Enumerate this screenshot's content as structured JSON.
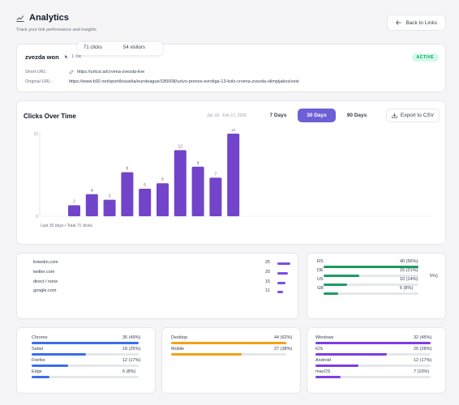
{
  "header": {
    "title": "Analytics",
    "subtitle": "Track your link performance and insights",
    "back_label": "Back to Links"
  },
  "tooltip": {
    "clicks": "71 clicks",
    "visitors": "54 visitors"
  },
  "link": {
    "name": "zvezda won",
    "meta_clicks": "1 clic",
    "status": "ACTIVE",
    "short_label": "Short URL:",
    "short_url": "https://urlcut.ai/crvena-zvezda-live",
    "original_label": "Original URL:",
    "original_url": "https://www.b92.net/sport/kosarka/euroleague/185008/uzivo-prenos-evroliga-13-kolo-crvena-zvezda-olimpijakos/vest"
  },
  "chart": {
    "title": "Clicks Over Time",
    "range_text": "Jan 18 - Feb 17, 2026",
    "range_buttons": [
      "7 Days",
      "30 Days",
      "90 Days"
    ],
    "active_range": "30 Days",
    "export_label": "Export to CSV",
    "footer": "Last 30 days • Total 71 clicks",
    "bar_color": "#7244c9"
  },
  "chart_data": {
    "type": "bar",
    "title": "Clicks Over Time",
    "values": [
      2,
      4,
      3,
      8,
      5,
      6,
      12,
      9,
      7,
      15
    ],
    "ylim": [
      0,
      15
    ],
    "y_ticks": [
      0,
      15
    ]
  },
  "referrers": [
    {
      "name": "linkedin.com",
      "count": "25",
      "fraction": 1.0
    },
    {
      "name": "twitter.com",
      "count": "20",
      "fraction": 0.8
    },
    {
      "name": "direct / none",
      "count": "15",
      "fraction": 0.6
    },
    {
      "name": "google.com",
      "count": "11",
      "fraction": 0.44
    }
  ],
  "countries": {
    "color": "#1e9a63",
    "clipped_text": "5%)",
    "items": [
      {
        "code": "RS",
        "value": "40 (56%)",
        "fraction": 1.0
      },
      {
        "code": "DE",
        "value": "15 (21%)",
        "fraction": 0.375
      },
      {
        "code": "US",
        "value": "10 (14%)",
        "fraction": 0.25
      },
      {
        "code": "GB",
        "value": "6 (8%)",
        "fraction": 0.15
      }
    ]
  },
  "browsers": {
    "color": "#3b6ee8",
    "items": [
      {
        "name": "Chrome",
        "value": "35 (49%)",
        "fraction": 1.0
      },
      {
        "name": "Safari",
        "value": "18 (25%)",
        "fraction": 0.51
      },
      {
        "name": "Firefox",
        "value": "12 (17%)",
        "fraction": 0.34
      },
      {
        "name": "Edge",
        "value": "6 (8%)",
        "fraction": 0.17
      }
    ]
  },
  "devices": {
    "color": "#f0a219",
    "items": [
      {
        "name": "Desktop",
        "value": "44 (62%)",
        "fraction": 1.0
      },
      {
        "name": "Mobile",
        "value": "27 (38%)",
        "fraction": 0.61
      }
    ]
  },
  "os": {
    "color": "#7c3fe0",
    "items": [
      {
        "name": "Windows",
        "value": "32 (45%)",
        "fraction": 1.0
      },
      {
        "name": "iOS",
        "value": "20 (28%)",
        "fraction": 0.62
      },
      {
        "name": "Android",
        "value": "12 (17%)",
        "fraction": 0.37
      },
      {
        "name": "macOS",
        "value": "7 (10%)",
        "fraction": 0.22
      }
    ]
  }
}
